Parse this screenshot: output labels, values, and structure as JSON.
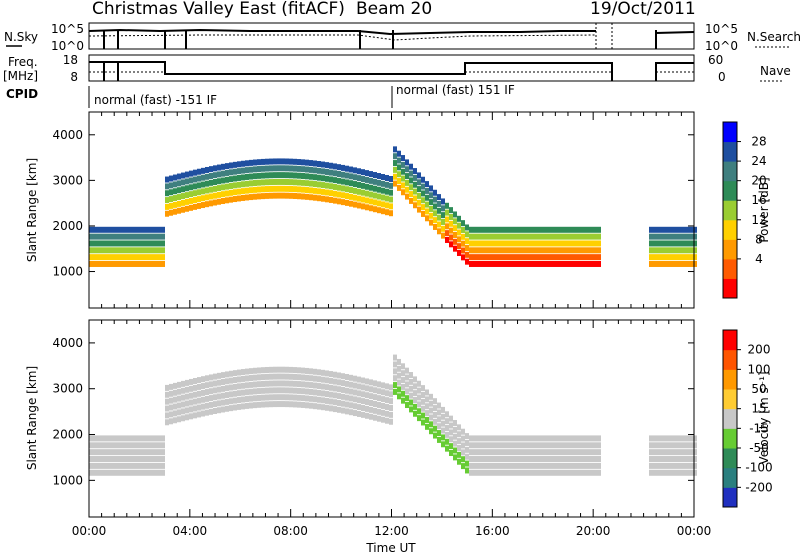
{
  "header": {
    "station": "Christmas Valley East (fitACF)",
    "beam": "Beam 20",
    "date": "19/Oct/2011"
  },
  "param_panels": {
    "nsky_label": "N.Sky",
    "nsearch_label": "N.Search",
    "freq_label_line1": "Freq.",
    "freq_label_line2": "[MHz]",
    "nave_label": "Nave",
    "cpid_label": "CPID",
    "noise_ticks": [
      "10^5",
      "10^0"
    ],
    "freq_ticks": [
      "18",
      "8"
    ],
    "nave_ticks": [
      "60",
      "0"
    ],
    "cpid_segments": [
      "normal (fast) -151 IF",
      "normal (fast) 151 IF"
    ]
  },
  "chart_data": [
    {
      "type": "heatmap",
      "name": "power-panel",
      "xlabel": "",
      "ylabel": "Slant Range [km]",
      "xlim_hours": [
        0,
        24
      ],
      "ylim": [
        200,
        4500
      ],
      "yticks": [
        1000,
        2000,
        3000,
        4000
      ],
      "colorbar": {
        "label": "Power [dB]",
        "ticks": [
          "28",
          "24",
          "20",
          "16",
          "12",
          "8",
          "4"
        ],
        "colors": [
          "#ff0000",
          "#ff5a00",
          "#ff9a00",
          "#ffd000",
          "#9acd32",
          "#2e8b57",
          "#3f7f7f",
          "#1f4fa0",
          "#0000ff"
        ]
      }
    },
    {
      "type": "heatmap",
      "name": "velocity-panel",
      "xlabel": "Time UT",
      "ylabel": "Slant Range [km]",
      "xlim_hours": [
        0,
        24
      ],
      "ylim": [
        200,
        4500
      ],
      "yticks": [
        1000,
        2000,
        3000,
        4000
      ],
      "xticks": [
        "00:00",
        "04:00",
        "08:00",
        "12:00",
        "16:00",
        "20:00",
        "00:00"
      ],
      "colorbar": {
        "label": "Velocity [m s⁻¹]",
        "ticks": [
          "200",
          "100",
          "50",
          "15",
          "-15",
          "-50",
          "-100",
          "-200"
        ],
        "colors": [
          "#2030c0",
          "#2a7f7f",
          "#2e8b57",
          "#66cc33",
          "#c8c8c8",
          "#ffcc33",
          "#ff9900",
          "#ff5500",
          "#ff0000"
        ]
      }
    }
  ]
}
